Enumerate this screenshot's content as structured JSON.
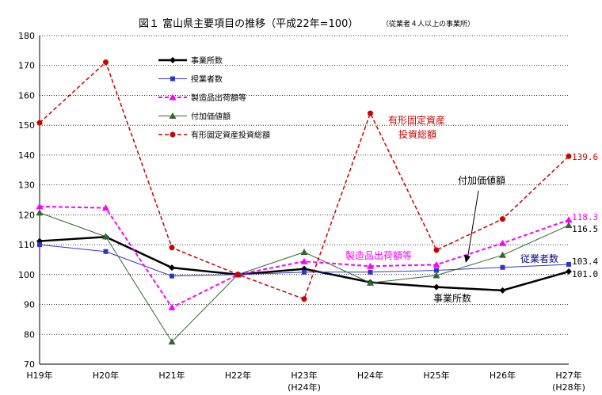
{
  "chart_data": {
    "type": "line",
    "title": "図１ 富山県主要項目の推移（平成22年=100）",
    "subtitle": "（従業者４人以上の事業所）",
    "categories": [
      "H19年",
      "H20年",
      "H21年",
      "H22年",
      "H23年",
      "H24年",
      "H25年",
      "H26年",
      "H27年"
    ],
    "category_sublabels": [
      "",
      "",
      "",
      "",
      "(H24年)",
      "",
      "",
      "",
      "(H28年)"
    ],
    "ylim": [
      70,
      180
    ],
    "yticks": [
      70,
      80,
      90,
      100,
      110,
      120,
      130,
      140,
      150,
      160,
      170,
      180
    ],
    "grid": "horizontal dotted",
    "legend_position": "top-left",
    "series": [
      {
        "name": "事業所数",
        "color": "#000000",
        "dash": "solid",
        "marker": "diamond",
        "values": [
          111.2,
          112.6,
          102.3,
          100.0,
          101.9,
          97.4,
          95.8,
          94.7,
          101.0
        ]
      },
      {
        "name": "従業者数",
        "color": "#3333cc",
        "dash": "solid",
        "marker": "square",
        "values": [
          110.0,
          107.7,
          99.5,
          100.0,
          100.8,
          100.8,
          101.4,
          102.4,
          103.4
        ]
      },
      {
        "name": "製造品出荷額等",
        "color": "#ff00ff",
        "dash": "dashed",
        "marker": "triangle",
        "values": [
          122.8,
          122.3,
          89.0,
          100.0,
          104.4,
          102.8,
          103.3,
          110.5,
          118.3
        ]
      },
      {
        "name": "付加価値額",
        "color": "#336633",
        "dash": "solid",
        "marker": "triangle-dark",
        "values": [
          120.7,
          112.7,
          77.5,
          100.0,
          107.5,
          97.2,
          99.7,
          106.5,
          116.5
        ]
      },
      {
        "name": "有形固定資産投資総額",
        "color": "#cc0000",
        "dash": "dashed",
        "marker": "circle",
        "values": [
          150.8,
          171.1,
          109.0,
          100.0,
          91.8,
          154.0,
          108.2,
          118.6,
          139.6
        ]
      }
    ],
    "legend_labels": [
      "事業所数",
      "授業者数",
      "製造品出荷額等",
      "付加価値額",
      "有形固定資産投資総額"
    ],
    "end_labels": [
      {
        "text": "139.6",
        "color": "#cc0000"
      },
      {
        "text": "118.3",
        "color": "#ff00ff"
      },
      {
        "text": "116.5",
        "color": "#000000"
      },
      {
        "text": "103.4",
        "color": "#000000"
      },
      {
        "text": "101.0",
        "color": "#000000"
      }
    ],
    "annotations": [
      {
        "line1": "有形固定資産",
        "line2": "投資総額",
        "color": "#cc0000"
      },
      {
        "line1": "付加価値額",
        "line2": "",
        "color": "#000000"
      },
      {
        "line1": "製造品出荷額等",
        "line2": "",
        "color": "#ff00ff"
      },
      {
        "line1": "従業者数",
        "line2": "",
        "color": "#000080"
      },
      {
        "line1": "事業所数",
        "line2": "",
        "color": "#000000"
      }
    ]
  }
}
